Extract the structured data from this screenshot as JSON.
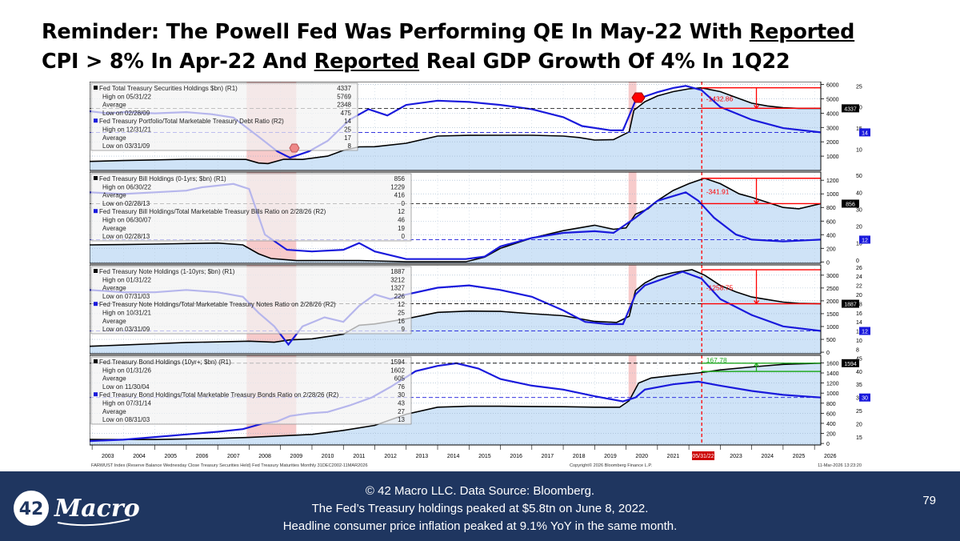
{
  "title": {
    "line1": "Reminder: The Powell Fed Was Performing QE In May-22 With ",
    "line1_u": "Reported",
    "line2_a": "CPI > 8% In Apr-22 And ",
    "line2_u": "Reported",
    "line2_b": " Real GDP Growth Of 4% In 1Q22"
  },
  "chart_data": {
    "type": "line",
    "x_range": [
      2002.92,
      2026.2
    ],
    "x_tick_labels": [
      "2003",
      "2004",
      "2005",
      "2006",
      "2007",
      "2008",
      "2009",
      "2010",
      "2011",
      "2012",
      "2013",
      "2014",
      "2015",
      "2016",
      "2017",
      "2018",
      "2019",
      "2020",
      "2021",
      "2022",
      "2023",
      "2024",
      "2025",
      "2026"
    ],
    "highlight_x_label": "05/31/22",
    "recession_shading": [
      [
        2007.92,
        2009.5
      ],
      [
        2020.08,
        2020.33
      ]
    ],
    "source_text": "FARWUST Index (Reserve Balance Wednesday Close Treasury Securities Held) Fed Treasury Maturities Monthly 31DEC2002-11MAR2026",
    "copyright_text": "Copyright© 2026 Bloomberg Finance L.P.",
    "timestamp_text": "11-Mar-2026 13:23:20",
    "colors": {
      "fill": "#cfe3f7",
      "black_line": "#000000",
      "blue_line": "#1a1adc",
      "recession": "#f4b9b9",
      "red_marker": "#ff0000",
      "green_marker": "#22aa22"
    },
    "panels": [
      {
        "name": "treasury-securities",
        "ylim_r1": [
          0,
          6200
        ],
        "ylim_r2": [
          5,
          26
        ],
        "r1_ticks": [
          1000,
          2000,
          3000,
          4000,
          5000,
          6000
        ],
        "r2_ticks": [
          10,
          15,
          20,
          25
        ],
        "last_r1_label": "4337",
        "last_r2_label": "14",
        "annotation_value": "-1432.86",
        "legend": [
          {
            "label": "Fed Total Treasury Securities Holdings $bn) (R1)",
            "value": "4337",
            "style": "header-black"
          },
          {
            "label": "High on 05/31/22",
            "value": "5769"
          },
          {
            "label": "Average",
            "value": "2348"
          },
          {
            "label": "Low on 02/28/09",
            "value": "475"
          },
          {
            "label": "Fed Treasury Portfolio/Total Marketable Treasury Debt Ratio (R2)",
            "value": "14",
            "style": "header-blue"
          },
          {
            "label": "High on 12/31/21",
            "value": "25"
          },
          {
            "label": "Average",
            "value": "17"
          },
          {
            "label": "Low on 03/31/09",
            "value": "8"
          }
        ],
        "series": [
          {
            "axis": "r1",
            "x": [
              2002.92,
              2004,
              2005,
              2006,
              2007,
              2007.9,
              2008.3,
              2008.6,
              2009.1,
              2009.7,
              2010.5,
              2011,
              2011.5,
              2012,
              2013,
              2014,
              2015,
              2016,
              2017,
              2018,
              2018.5,
              2019,
              2019.6,
              2020.1,
              2020.25,
              2020.6,
              2021,
              2021.5,
              2022.0,
              2022.4,
              2023,
              2023.5,
              2024,
              2024.5,
              2025,
              2025.5,
              2026.2
            ],
            "y": [
              630,
              690,
              740,
              780,
              780,
              770,
              520,
              480,
              780,
              770,
              1000,
              1400,
              1650,
              1660,
              1900,
              2400,
              2450,
              2460,
              2460,
              2400,
              2300,
              2120,
              2150,
              2700,
              4200,
              4800,
              5200,
              5500,
              5700,
              5769,
              5500,
              5100,
              4700,
              4500,
              4380,
              4337,
              4337
            ]
          },
          {
            "axis": "r2",
            "x": [
              2002.92,
              2003.5,
              2004,
              2005,
              2006,
              2006.8,
              2007.5,
              2008.3,
              2008.9,
              2009.3,
              2009.9,
              2010.5,
              2011.2,
              2011.8,
              2012.4,
              2013,
              2014,
              2015,
              2016,
              2017,
              2018,
              2018.6,
              2019.5,
              2019.9,
              2020.3,
              2020.6,
              2021,
              2021.5,
              2021.9,
              2022.4,
              2023,
              2024,
              2025,
              2026.2
            ],
            "y": [
              19,
              18.5,
              18.8,
              18.5,
              18.8,
              18.3,
              17.5,
              13,
              9.5,
              8,
              9.5,
              12,
              17,
              19.5,
              18,
              20.5,
              21.5,
              21.2,
              20.5,
              19.5,
              17.6,
              15.5,
              14.5,
              14.5,
              21.5,
              22.5,
              23.5,
              24.5,
              25,
              24,
              20,
              17,
              15,
              14
            ]
          }
        ]
      },
      {
        "name": "treasury-bills",
        "ylim_r1": [
          -20,
          1320
        ],
        "ylim_r2": [
          -2,
          52
        ],
        "r1_ticks": [
          0,
          200,
          400,
          600,
          800,
          1000,
          1200
        ],
        "r2_ticks": [
          0,
          10,
          20,
          30,
          40,
          50
        ],
        "last_r1_label": "856",
        "last_r2_label": "12",
        "annotation_value": "-341.91",
        "legend": [
          {
            "label": "Fed Treasury Bill Holdings (0-1yrs; $bn) (R1)",
            "value": "856",
            "style": "header-black"
          },
          {
            "label": "High on 06/30/22",
            "value": "1229"
          },
          {
            "label": "Average",
            "value": "416"
          },
          {
            "label": "Low on 02/28/13",
            "value": "0"
          },
          {
            "label": "Fed Treasury Bill Holdings/Total Marketable Treasury Bills Ratio on 2/28/26 (R2)",
            "value": "12",
            "style": "header-blue"
          },
          {
            "label": "High on 06/30/07",
            "value": "46"
          },
          {
            "label": "Average",
            "value": "19"
          },
          {
            "label": "Low on 02/28/13",
            "value": "0"
          }
        ],
        "series": [
          {
            "axis": "r1",
            "x": [
              2002.92,
              2004,
              2005,
              2006,
              2007,
              2007.8,
              2008.3,
              2008.7,
              2009.5,
              2010.5,
              2011.5,
              2012,
              2013,
              2014,
              2014.9,
              2015.5,
              2016,
              2017,
              2018,
              2019,
              2019.6,
              2020,
              2020.3,
              2020.7,
              2021,
              2021.5,
              2022.0,
              2022.5,
              2023,
              2023.6,
              2024,
              2025,
              2025.5,
              2026.2
            ],
            "y": [
              250,
              255,
              262,
              270,
              277,
              250,
              120,
              50,
              20,
              20,
              20,
              15,
              2,
              2,
              2,
              70,
              200,
              350,
              460,
              540,
              480,
              500,
              700,
              780,
              900,
              1050,
              1150,
              1229,
              1150,
              1000,
              950,
              800,
              780,
              856
            ]
          },
          {
            "axis": "r2",
            "x": [
              2002.92,
              2004,
              2005,
              2006,
              2006.5,
              2007.5,
              2008.0,
              2008.5,
              2009.2,
              2010,
              2011,
              2011.5,
              2012,
              2013,
              2014,
              2014.9,
              2015.5,
              2016,
              2017,
              2018,
              2019,
              2019.6,
              2020.3,
              2021,
              2021.9,
              2022.3,
              2022.8,
              2023.5,
              2024,
              2025,
              2026.2
            ],
            "y": [
              40,
              39,
              40,
              41,
              43,
              45,
              42,
              15,
              6,
              5,
              6,
              10,
              5,
              0.5,
              0.5,
              0.5,
              2,
              8,
              13,
              16,
              17,
              16,
              25,
              35,
              40,
              35,
              25,
              15,
              12,
              11,
              12
            ]
          }
        ]
      },
      {
        "name": "treasury-notes",
        "ylim_r1": [
          -60,
          3400
        ],
        "ylim_r2": [
          7,
          26.5
        ],
        "r1_ticks": [
          0,
          500,
          1000,
          1500,
          2000,
          2500,
          3000
        ],
        "r2_ticks": [
          8,
          10,
          12,
          14,
          16,
          18,
          20,
          22,
          24,
          26
        ],
        "last_r1_label": "1887",
        "last_r2_label": "12",
        "annotation_value": "-1258.75",
        "legend": [
          {
            "label": "Fed Treasury Note Holdings (1-10yrs; $bn) (R1)",
            "value": "1887",
            "style": "header-black"
          },
          {
            "label": "High on 01/31/22",
            "value": "3212"
          },
          {
            "label": "Average",
            "value": "1327"
          },
          {
            "label": "Low on 07/31/03",
            "value": "226"
          },
          {
            "label": "Fed Treasury Note Holdings/Total Marketable Treasury Notes Ratio on 2/28/26 (R2)",
            "value": "12",
            "style": "header-blue"
          },
          {
            "label": "High on 10/31/21",
            "value": "25"
          },
          {
            "label": "Average",
            "value": "16"
          },
          {
            "label": "Low on 03/31/09",
            "value": "9"
          }
        ],
        "series": [
          {
            "axis": "r1",
            "x": [
              2002.92,
              2004,
              2005,
              2006,
              2007,
              2008,
              2008.8,
              2009.3,
              2010,
              2011,
              2011.5,
              2012,
              2013,
              2014,
              2015,
              2016,
              2017,
              2018,
              2019,
              2019.7,
              2020.1,
              2020.3,
              2020.6,
              2021,
              2021.5,
              2022.1,
              2022.5,
              2023,
              2023.5,
              2024,
              2024.5,
              2025,
              2025.5,
              2026.2
            ],
            "y": [
              230,
              280,
              330,
              380,
              400,
              430,
              390,
              480,
              520,
              700,
              1050,
              1100,
              1300,
              1550,
              1600,
              1590,
              1500,
              1420,
              1200,
              1160,
              1400,
              2400,
              2700,
              2950,
              3100,
              3212,
              3000,
              2600,
              2350,
              2150,
              2050,
              1950,
              1900,
              1887
            ]
          },
          {
            "axis": "r2",
            "x": [
              2002.92,
              2004,
              2005,
              2006,
              2007,
              2007.8,
              2008.3,
              2008.8,
              2009.25,
              2009.7,
              2010.4,
              2011.0,
              2011.5,
              2012,
              2012.5,
              2013,
              2014,
              2015,
              2016,
              2017,
              2018,
              2018.7,
              2019.4,
              2019.9,
              2020.3,
              2020.6,
              2021.2,
              2021.8,
              2022.4,
              2023,
              2024,
              2025,
              2026.2
            ],
            "y": [
              21,
              20.5,
              20.5,
              21,
              20.5,
              19.5,
              16,
              13,
              9,
              13,
              15,
              14,
              17.5,
              20,
              19,
              20,
              21.5,
              22,
              21,
              19.5,
              16.5,
              14,
              13.5,
              13.5,
              20,
              22,
              23.5,
              25,
              23.5,
              19,
              15.5,
              13,
              12
            ]
          }
        ]
      },
      {
        "name": "treasury-bonds",
        "ylim_r1": [
          -30,
          1750
        ],
        "ylim_r2": [
          12,
          46
        ],
        "r1_ticks": [
          0,
          200,
          400,
          600,
          800,
          1000,
          1200,
          1400,
          1600
        ],
        "r2_ticks": [
          15,
          20,
          25,
          30,
          35,
          40,
          45
        ],
        "last_r1_label": "1594",
        "last_r2_label": "30",
        "annotation_value": "167.78",
        "legend": [
          {
            "label": "Fed Treasury Bond Holdings (10yr+; $bn) (R1)",
            "value": "1594",
            "style": "header-black"
          },
          {
            "label": "High on 01/31/26",
            "value": "1602"
          },
          {
            "label": "Average",
            "value": "605"
          },
          {
            "label": "Low on 11/30/04",
            "value": "76"
          },
          {
            "label": "Fed Treasury Bond Holdings/Total Marketable Treasury Bonds Ratio on 2/28/26 (R2)",
            "value": "30",
            "style": "header-blue"
          },
          {
            "label": "High on 07/31/14",
            "value": "43"
          },
          {
            "label": "Average",
            "value": "27"
          },
          {
            "label": "Low on 08/31/03",
            "value": "13"
          }
        ],
        "series": [
          {
            "axis": "r1",
            "x": [
              2002.92,
              2004,
              2005,
              2006,
              2007,
              2008,
              2009,
              2010,
              2011,
              2012,
              2013,
              2014,
              2015,
              2016,
              2017,
              2018,
              2019,
              2019.8,
              2020.1,
              2020.4,
              2020.8,
              2021.5,
              2022.3,
              2023,
              2024,
              2025,
              2026.2
            ],
            "y": [
              80,
              78,
              78,
              90,
              100,
              120,
              150,
              180,
              260,
              360,
              580,
              720,
              740,
              740,
              735,
              730,
              720,
              720,
              850,
              1200,
              1300,
              1350,
              1400,
              1460,
              1520,
              1570,
              1594
            ]
          },
          {
            "axis": "r2",
            "x": [
              2002.92,
              2004,
              2005,
              2006,
              2007,
              2007.8,
              2008.4,
              2008.9,
              2009.3,
              2009.9,
              2010.5,
              2011.2,
              2011.9,
              2012.5,
              2013.3,
              2014,
              2014.6,
              2015.3,
              2016,
              2017,
              2018,
              2019,
              2019.9,
              2020.3,
              2020.6,
              2021.5,
              2022.3,
              2023,
              2024,
              2025,
              2026.2
            ],
            "y": [
              13.5,
              14,
              15,
              16,
              17,
              18,
              20,
              21,
              23,
              24,
              24.5,
              27,
              30,
              34,
              40,
              42,
              43,
              41,
              37,
              34.5,
              33,
              30.5,
              28.5,
              30,
              33,
              35,
              36,
              34.5,
              32.5,
              31,
              30
            ]
          }
        ]
      }
    ]
  },
  "footer": {
    "line1": "© 42 Macro LLC. Data Source: Bloomberg.",
    "line2": "The Fed’s Treasury holdings peaked at $5.8tn on June 8, 2022.",
    "line3": "Headline consumer price inflation peaked at 9.1% YoY in the same month.",
    "logo_number": "42",
    "logo_word": "Macro",
    "page_number": "79"
  }
}
